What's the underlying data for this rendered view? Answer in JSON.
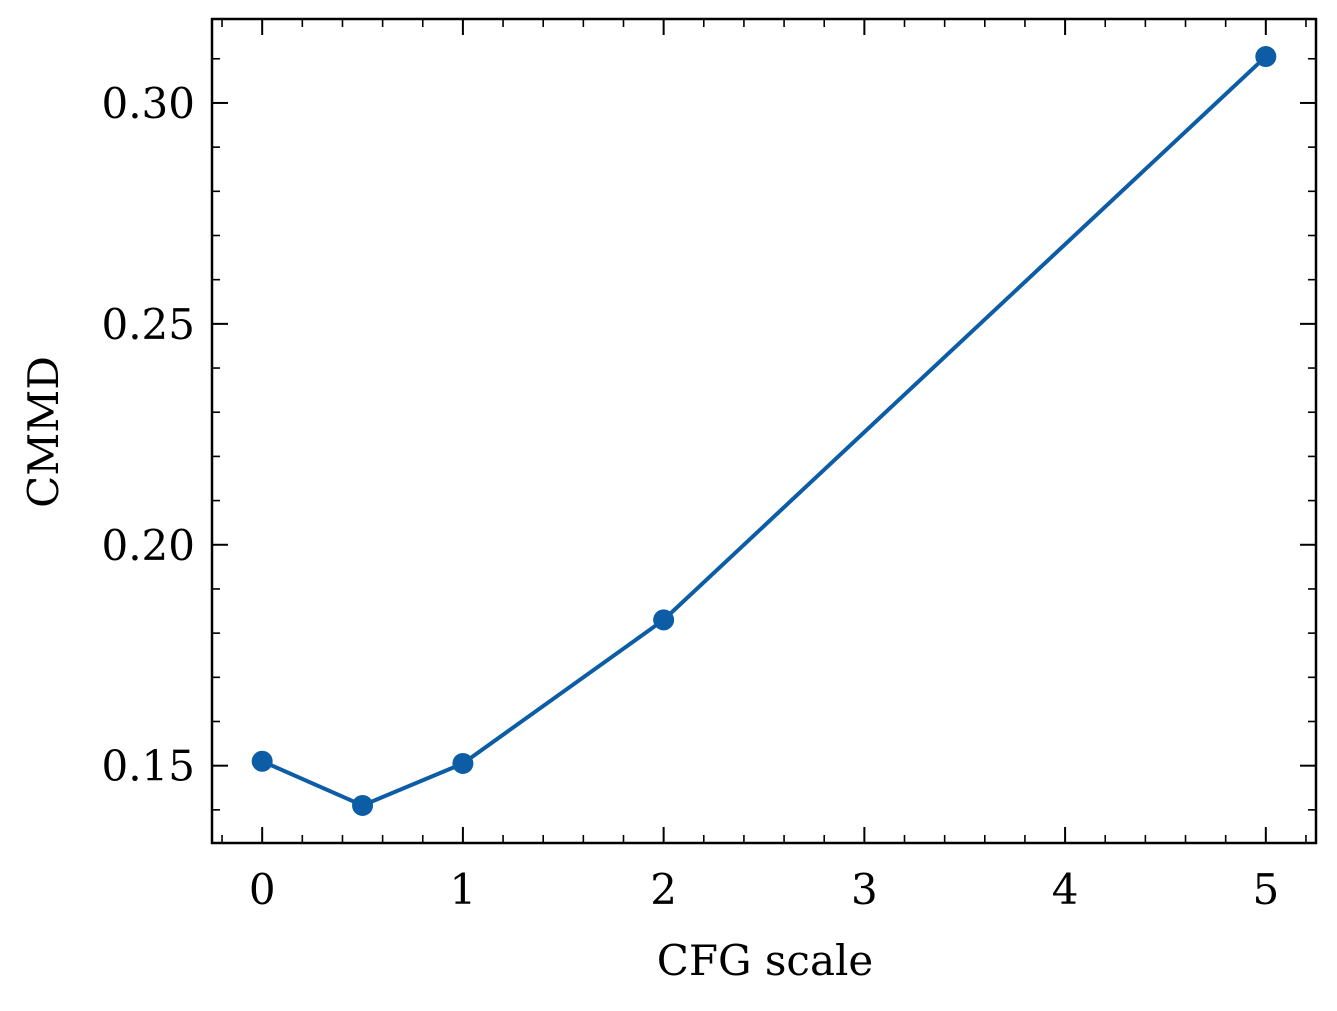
{
  "chart_data": {
    "type": "line",
    "title": "",
    "xlabel": "CFG scale",
    "ylabel": "CMMD",
    "x": [
      0,
      0.5,
      1,
      2,
      5
    ],
    "series": [
      {
        "values": [
          0.151,
          0.141,
          0.1505,
          0.183,
          0.3105
        ]
      }
    ],
    "xlim": [
      -0.25,
      5.25
    ],
    "ylim": [
      0.1325,
      0.319
    ],
    "xticks": [
      0,
      1,
      2,
      3,
      4,
      5
    ],
    "xtick_labels": [
      "0",
      "1",
      "2",
      "3",
      "4",
      "5"
    ],
    "yticks": [
      0.15,
      0.2,
      0.25,
      0.3
    ],
    "ytick_labels": [
      "0.15",
      "0.20",
      "0.25",
      "0.30"
    ],
    "x_minor_step": 0.2,
    "y_minor_step": 0.01,
    "ticks_direction": "in",
    "grid": false,
    "legend": false,
    "line_color": "#0C5DA5",
    "marker": "circle"
  }
}
